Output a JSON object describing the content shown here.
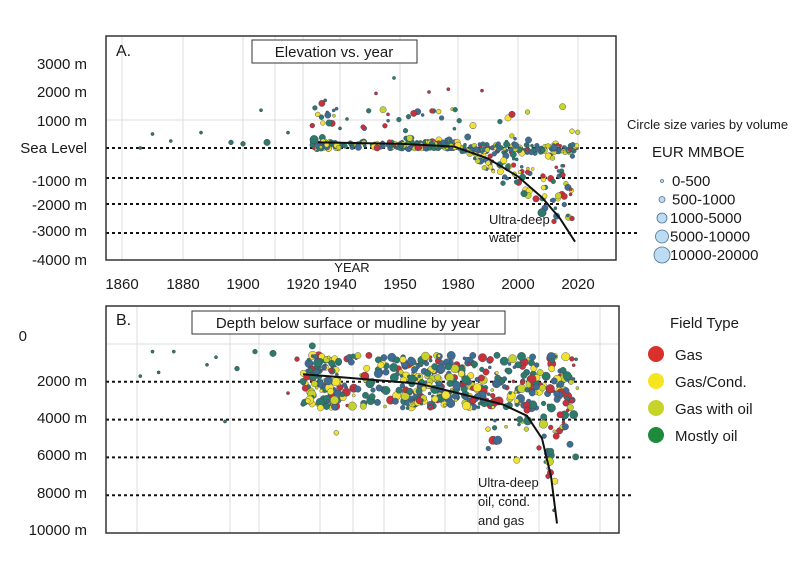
{
  "chart_data": [
    {
      "id": "A",
      "type": "scatter",
      "panel_label": "A.",
      "title": "Elevation vs. year",
      "xlabel": "YEAR",
      "ylabel": "",
      "x_tick_labels": [
        "1860",
        "1880",
        "1900",
        "1920",
        "1940",
        "1950",
        "1980",
        "2000",
        "2020"
      ],
      "y_tick_labels": [
        "3000 m",
        "2000 m",
        "1000 m",
        "Sea Level",
        "-1000 m",
        "-2000 m",
        "-3000 m",
        "-4000 m"
      ],
      "y_values": [
        3000,
        2000,
        1000,
        0,
        -1000,
        -2000,
        -3000,
        -4000
      ],
      "dashed_reference_lines": [
        0,
        -1000,
        -2000,
        -3000
      ],
      "grid": true,
      "trend_line": {
        "description": "Frontier elevation trend",
        "points": [
          [
            1928,
            200
          ],
          [
            1950,
            150
          ],
          [
            1965,
            100
          ],
          [
            1978,
            50
          ],
          [
            1990,
            -350
          ],
          [
            2000,
            -950
          ],
          [
            2008,
            -1750
          ],
          [
            2014,
            -2500
          ],
          [
            2019,
            -3300
          ]
        ]
      },
      "annotation": [
        "Ultra-deep",
        "water"
      ],
      "series_summary": "Scattered field discoveries (colored by field type, sized by EUR) clustered near sea level 1920-1980, spreading to -3000 m after 1990",
      "points_sample": [
        {
          "year": 1866,
          "value": 0,
          "type": "Mostly oil",
          "size": "0-500"
        },
        {
          "year": 1870,
          "value": 500,
          "type": "Mostly oil",
          "size": "0-500"
        },
        {
          "year": 1876,
          "value": 250,
          "type": "Mostly oil",
          "size": "0-500"
        },
        {
          "year": 1886,
          "value": 550,
          "type": "Mostly oil",
          "size": "0-500"
        },
        {
          "year": 1896,
          "value": 200,
          "type": "Mostly oil",
          "size": "500-1000"
        },
        {
          "year": 1900,
          "value": 150,
          "type": "Mostly oil",
          "size": "500-1000"
        },
        {
          "year": 1906,
          "value": 1350,
          "type": "Mostly oil",
          "size": "0-500"
        },
        {
          "year": 1908,
          "value": 200,
          "type": "Mostly oil",
          "size": "1000-5000"
        },
        {
          "year": 1915,
          "value": 550,
          "type": "Mostly oil",
          "size": "0-500"
        },
        {
          "year": 1925,
          "value": 800,
          "type": "Gas",
          "size": "500-1000"
        },
        {
          "year": 1926,
          "value": 300,
          "type": "Mostly oil",
          "size": "5000-10000"
        },
        {
          "year": 1928,
          "value": 1200,
          "type": "Gas/Cond.",
          "size": "500-1000"
        },
        {
          "year": 1930,
          "value": 1100,
          "type": "Mostly oil",
          "size": "500-1000"
        },
        {
          "year": 1932,
          "value": 1700,
          "type": "Mostly oil",
          "size": "0-500"
        },
        {
          "year": 1940,
          "value": 700,
          "type": "Mostly oil",
          "size": "0-500"
        },
        {
          "year": 1946,
          "value": 1950,
          "type": "Gas",
          "size": "0-500"
        },
        {
          "year": 1948,
          "value": 1200,
          "type": "Gas",
          "size": "0-500"
        },
        {
          "year": 1949,
          "value": 2500,
          "type": "Mostly oil",
          "size": "0-500"
        },
        {
          "year": 1955,
          "value": 350,
          "type": "Gas with oil",
          "size": "1000-5000"
        },
        {
          "year": 1965,
          "value": 2000,
          "type": "Gas",
          "size": "0-500"
        },
        {
          "year": 1970,
          "value": 1300,
          "type": "Gas/Cond.",
          "size": "500-1000"
        },
        {
          "year": 1975,
          "value": 2100,
          "type": "Gas",
          "size": "0-500"
        },
        {
          "year": 1980,
          "value": 100,
          "type": "Gas/Cond.",
          "size": "1000-5000"
        },
        {
          "year": 1985,
          "value": 800,
          "type": "Gas/Cond.",
          "size": "1000-5000"
        },
        {
          "year": 1988,
          "value": 2050,
          "type": "Gas",
          "size": "0-500"
        },
        {
          "year": 1990,
          "value": -500,
          "type": "Gas/Cond.",
          "size": "500-1000"
        },
        {
          "year": 1995,
          "value": -1200,
          "type": "Mostly oil",
          "size": "500-1000"
        },
        {
          "year": 1998,
          "value": 1200,
          "type": "Gas",
          "size": "1000-5000"
        },
        {
          "year": 2002,
          "value": -1600,
          "type": "Mostly oil",
          "size": "1000-5000"
        },
        {
          "year": 2006,
          "value": -1800,
          "type": "Gas",
          "size": "1000-5000"
        },
        {
          "year": 2008,
          "value": -2300,
          "type": "Mostly oil",
          "size": "5000-10000"
        },
        {
          "year": 2012,
          "value": -2600,
          "type": "Gas",
          "size": "500-1000"
        },
        {
          "year": 2015,
          "value": -900,
          "type": "Gas",
          "size": "500-1000"
        },
        {
          "year": 2018,
          "value": -2500,
          "type": "Gas",
          "size": "500-1000"
        },
        {
          "year": 2018,
          "value": 600,
          "type": "Gas/Cond.",
          "size": "500-1000"
        }
      ]
    },
    {
      "id": "B",
      "type": "scatter",
      "panel_label": "B.",
      "title": "Depth below surface or mudline by year",
      "xlabel": "",
      "ylabel": "",
      "x_tick_labels": [],
      "y_tick_labels": [
        "0",
        "2000 m",
        "4000 m",
        "6000 m",
        "8000 m",
        "10000 m"
      ],
      "y_values": [
        0,
        2000,
        4000,
        6000,
        8000,
        10000
      ],
      "dashed_reference_lines": [
        2000,
        4000,
        6000,
        8000
      ],
      "grid": true,
      "trend_line": {
        "description": "Frontier depth trend",
        "points": [
          [
            1920,
            1600
          ],
          [
            1940,
            1750
          ],
          [
            1960,
            2100
          ],
          [
            1980,
            2600
          ],
          [
            1995,
            3200
          ],
          [
            2003,
            3800
          ],
          [
            2008,
            5000
          ],
          [
            2011,
            7000
          ],
          [
            2013,
            9500
          ]
        ]
      },
      "annotation": [
        "Ultra-deep",
        "oil, cond.",
        "and gas"
      ],
      "series_summary": "Field discovery depths deepening over time from ~1000 m in early years to ~9500 m after 2010",
      "points_sample": [
        {
          "year": 1866,
          "value": 1700,
          "type": "Mostly oil",
          "size": "0-500"
        },
        {
          "year": 1870,
          "value": 400,
          "type": "Mostly oil",
          "size": "0-500"
        },
        {
          "year": 1872,
          "value": 1500,
          "type": "Mostly oil",
          "size": "0-500"
        },
        {
          "year": 1877,
          "value": 400,
          "type": "Mostly oil",
          "size": "0-500"
        },
        {
          "year": 1888,
          "value": 1100,
          "type": "Mostly oil",
          "size": "0-500"
        },
        {
          "year": 1891,
          "value": 700,
          "type": "Mostly oil",
          "size": "0-500"
        },
        {
          "year": 1894,
          "value": 4100,
          "type": "Mostly oil",
          "size": "0-500"
        },
        {
          "year": 1898,
          "value": 1300,
          "type": "Mostly oil",
          "size": "500-1000"
        },
        {
          "year": 1904,
          "value": 400,
          "type": "Mostly oil",
          "size": "500-1000"
        },
        {
          "year": 1910,
          "value": 500,
          "type": "Mostly oil",
          "size": "1000-5000"
        },
        {
          "year": 1915,
          "value": 2600,
          "type": "Gas",
          "size": "0-500"
        },
        {
          "year": 1918,
          "value": 800,
          "type": "Gas",
          "size": "500-1000"
        },
        {
          "year": 1925,
          "value": 100,
          "type": "Mostly oil",
          "size": "1000-5000"
        },
        {
          "year": 1928,
          "value": 1000,
          "type": "Mostly oil",
          "size": "5000-10000"
        },
        {
          "year": 1935,
          "value": 1400,
          "type": "Gas",
          "size": "500-1000"
        },
        {
          "year": 1938,
          "value": 4700,
          "type": "Gas/Cond.",
          "size": "500-1000"
        },
        {
          "year": 1945,
          "value": 2100,
          "type": "Mostly oil",
          "size": "5000-10000"
        },
        {
          "year": 1955,
          "value": 2500,
          "type": "Mostly oil",
          "size": "1000-5000"
        },
        {
          "year": 1960,
          "value": 3000,
          "type": "Gas",
          "size": "1000-5000"
        },
        {
          "year": 1965,
          "value": 2200,
          "type": "Gas/Cond.",
          "size": "1000-5000"
        },
        {
          "year": 1975,
          "value": 1200,
          "type": "Mostly oil",
          "size": "1000-5000"
        },
        {
          "year": 1985,
          "value": 3000,
          "type": "Gas",
          "size": "1000-5000"
        },
        {
          "year": 1990,
          "value": 4500,
          "type": "Gas/Cond.",
          "size": "500-1000"
        },
        {
          "year": 2000,
          "value": 1100,
          "type": "Mostly oil",
          "size": "1000-5000"
        },
        {
          "year": 2003,
          "value": 3500,
          "type": "Gas",
          "size": "1000-5000"
        },
        {
          "year": 2007,
          "value": 5500,
          "type": "Gas",
          "size": "500-1000"
        },
        {
          "year": 2010,
          "value": 7000,
          "type": "Gas",
          "size": "500-1000"
        },
        {
          "year": 2012,
          "value": 8800,
          "type": "Mostly oil",
          "size": "0-500"
        },
        {
          "year": 2015,
          "value": 1400,
          "type": "Mostly oil",
          "size": "1000-5000"
        },
        {
          "year": 2018,
          "value": 3000,
          "type": "Gas",
          "size": "500-1000"
        }
      ]
    }
  ],
  "legends": {
    "size": {
      "caption": "Circle size varies by volume",
      "title": "EUR MMBOE",
      "items": [
        "0-500",
        "500-1000",
        "1000-5000",
        "5000-10000",
        "10000-20000"
      ]
    },
    "field_type": {
      "title": "Field Type",
      "items": [
        {
          "label": "Gas",
          "color": "#d9302b"
        },
        {
          "label": "Gas/Cond.",
          "color": "#f5e51f"
        },
        {
          "label": "Gas with oil",
          "color": "#c6d42a"
        },
        {
          "label": "Mostly oil",
          "color": "#1e8a3c"
        }
      ]
    },
    "size_circle_color": "#bcdcf3",
    "size_circle_stroke": "#4f6f8f"
  },
  "colors": {
    "Gas": "#c8303a",
    "Gas/Cond.": "#f2e233",
    "Gas with oil": "#c6d42a",
    "Mostly oil": "#2b7a6a",
    "blue_cluster": "#3d6d93",
    "gridline": "#dcdcdc"
  }
}
